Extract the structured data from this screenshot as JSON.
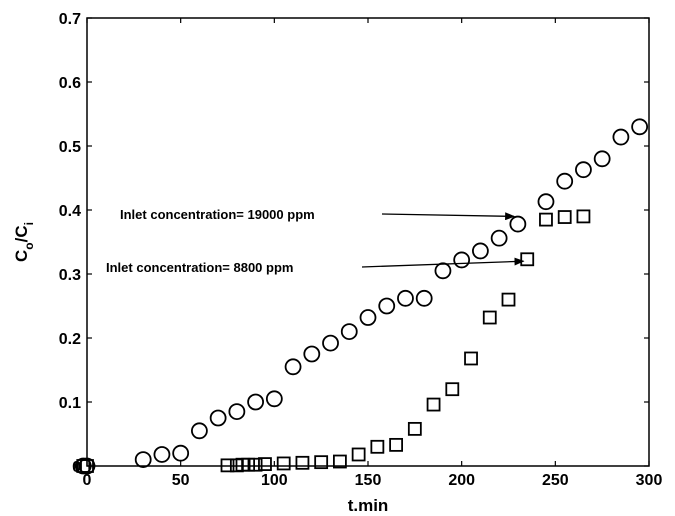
{
  "chart_data": {
    "type": "scatter",
    "title": "",
    "xlabel": "t.min",
    "ylabel": {
      "main": "C",
      "sub1": "o",
      "sep": "/C",
      "sub2": "i"
    },
    "xlim": [
      0,
      300
    ],
    "ylim": [
      0,
      0.7
    ],
    "xticks": [
      "0",
      "50",
      "100",
      "150",
      "200",
      "250",
      "300"
    ],
    "yticks": [
      "0",
      "0.1",
      "0.2",
      "0.3",
      "0.4",
      "0.5",
      "0.6",
      "0.7"
    ],
    "grid": false,
    "series": [
      {
        "marker": "circle",
        "points": [
          [
            -2,
            0
          ],
          [
            0,
            0
          ],
          [
            30,
            0.01
          ],
          [
            40,
            0.018
          ],
          [
            50,
            0.02
          ],
          [
            60,
            0.055
          ],
          [
            70,
            0.075
          ],
          [
            80,
            0.085
          ],
          [
            90,
            0.1
          ],
          [
            100,
            0.105
          ],
          [
            110,
            0.155
          ],
          [
            120,
            0.175
          ],
          [
            130,
            0.192
          ],
          [
            140,
            0.21
          ],
          [
            150,
            0.232
          ],
          [
            160,
            0.25
          ],
          [
            170,
            0.262
          ],
          [
            180,
            0.262
          ],
          [
            190,
            0.305
          ],
          [
            200,
            0.322
          ],
          [
            210,
            0.336
          ],
          [
            220,
            0.356
          ],
          [
            230,
            0.378
          ],
          [
            245,
            0.413
          ],
          [
            255,
            0.445
          ],
          [
            265,
            0.463
          ],
          [
            275,
            0.48
          ],
          [
            285,
            0.514
          ],
          [
            295,
            0.53
          ]
        ]
      },
      {
        "marker": "square",
        "points": [
          [
            -2,
            0
          ],
          [
            0,
            0
          ],
          [
            75,
            0.001
          ],
          [
            80,
            0.001
          ],
          [
            83,
            0.002
          ],
          [
            86,
            0.002
          ],
          [
            90,
            0.002
          ],
          [
            95,
            0.003
          ],
          [
            105,
            0.004
          ],
          [
            115,
            0.005
          ],
          [
            125,
            0.006
          ],
          [
            135,
            0.007
          ],
          [
            145,
            0.018
          ],
          [
            155,
            0.03
          ],
          [
            165,
            0.033
          ],
          [
            175,
            0.058
          ],
          [
            185,
            0.096
          ],
          [
            195,
            0.12
          ],
          [
            205,
            0.168
          ],
          [
            215,
            0.232
          ],
          [
            225,
            0.26
          ],
          [
            235,
            0.323
          ],
          [
            245,
            0.385
          ],
          [
            255,
            0.389
          ],
          [
            265,
            0.39
          ]
        ]
      }
    ],
    "annotations": [
      {
        "text": "Inlet concentration= 19000 ppm",
        "arrow_to": [
          228,
          0.39
        ]
      },
      {
        "text": "Inlet concentration= 8800 ppm",
        "arrow_to": [
          233,
          0.32
        ]
      }
    ]
  }
}
